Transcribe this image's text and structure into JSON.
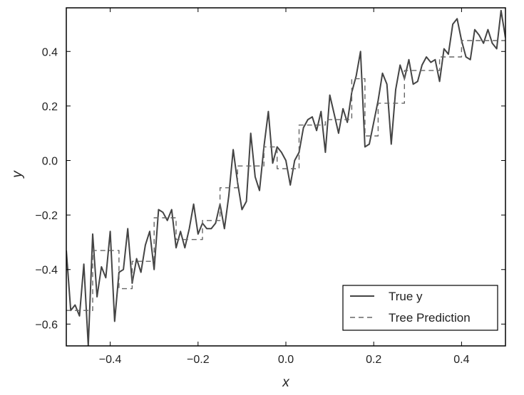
{
  "chart_data": {
    "type": "line",
    "xlabel": "x",
    "ylabel": "y",
    "xlim": [
      -0.5,
      0.5
    ],
    "ylim": [
      -0.68,
      0.56
    ],
    "xticks": [
      -0.4,
      -0.2,
      0.0,
      0.2,
      0.4
    ],
    "xtick_labels": [
      "−0.4",
      "−0.2",
      "0.0",
      "0.2",
      "0.4"
    ],
    "yticks": [
      -0.6,
      -0.4,
      -0.2,
      0.0,
      0.2,
      0.4
    ],
    "ytick_labels": [
      "−0.6",
      "−0.4",
      "−0.2",
      "0.0",
      "0.2",
      "0.4"
    ],
    "grid": false,
    "legend_position": "bottom-right",
    "series": [
      {
        "name": "True y",
        "style": "solid",
        "color": "#444444",
        "x": [
          -0.5,
          -0.49,
          -0.48,
          -0.47,
          -0.46,
          -0.45,
          -0.44,
          -0.43,
          -0.42,
          -0.41,
          -0.4,
          -0.39,
          -0.38,
          -0.37,
          -0.36,
          -0.35,
          -0.34,
          -0.33,
          -0.32,
          -0.31,
          -0.3,
          -0.29,
          -0.28,
          -0.27,
          -0.26,
          -0.25,
          -0.24,
          -0.23,
          -0.22,
          -0.21,
          -0.2,
          -0.19,
          -0.18,
          -0.17,
          -0.16,
          -0.15,
          -0.14,
          -0.13,
          -0.12,
          -0.11,
          -0.1,
          -0.09,
          -0.08,
          -0.07,
          -0.06,
          -0.05,
          -0.04,
          -0.03,
          -0.02,
          -0.01,
          0.0,
          0.01,
          0.02,
          0.03,
          0.04,
          0.05,
          0.06,
          0.07,
          0.08,
          0.09,
          0.1,
          0.11,
          0.12,
          0.13,
          0.14,
          0.15,
          0.16,
          0.17,
          0.18,
          0.19,
          0.2,
          0.21,
          0.22,
          0.23,
          0.24,
          0.25,
          0.26,
          0.27,
          0.28,
          0.29,
          0.3,
          0.31,
          0.32,
          0.33,
          0.34,
          0.35,
          0.36,
          0.37,
          0.38,
          0.39,
          0.4,
          0.41,
          0.42,
          0.43,
          0.44,
          0.45,
          0.46,
          0.47,
          0.48,
          0.49,
          0.5
        ],
        "y": [
          -0.33,
          -0.55,
          -0.53,
          -0.57,
          -0.38,
          -0.68,
          -0.27,
          -0.5,
          -0.39,
          -0.43,
          -0.26,
          -0.59,
          -0.41,
          -0.4,
          -0.25,
          -0.45,
          -0.36,
          -0.41,
          -0.31,
          -0.26,
          -0.4,
          -0.18,
          -0.19,
          -0.22,
          -0.18,
          -0.32,
          -0.26,
          -0.32,
          -0.25,
          -0.16,
          -0.27,
          -0.23,
          -0.25,
          -0.25,
          -0.23,
          -0.16,
          -0.25,
          -0.13,
          0.04,
          -0.08,
          -0.18,
          -0.15,
          0.1,
          -0.06,
          -0.11,
          0.05,
          0.18,
          -0.01,
          0.05,
          0.03,
          0.0,
          -0.09,
          0.0,
          0.03,
          0.12,
          0.15,
          0.16,
          0.11,
          0.18,
          0.03,
          0.24,
          0.17,
          0.1,
          0.19,
          0.14,
          0.25,
          0.31,
          0.4,
          0.05,
          0.06,
          0.14,
          0.22,
          0.32,
          0.28,
          0.06,
          0.26,
          0.35,
          0.3,
          0.37,
          0.28,
          0.29,
          0.35,
          0.38,
          0.36,
          0.37,
          0.29,
          0.41,
          0.39,
          0.5,
          0.52,
          0.44,
          0.38,
          0.37,
          0.48,
          0.46,
          0.43,
          0.48,
          0.43,
          0.41,
          0.55,
          0.45
        ]
      },
      {
        "name": "Tree Prediction",
        "style": "dashed",
        "color": "#666666",
        "x": [
          -0.5,
          -0.44,
          -0.44,
          -0.38,
          -0.38,
          -0.35,
          -0.35,
          -0.3,
          -0.3,
          -0.25,
          -0.25,
          -0.19,
          -0.19,
          -0.15,
          -0.15,
          -0.11,
          -0.11,
          -0.05,
          -0.05,
          -0.02,
          -0.02,
          0.03,
          0.03,
          0.09,
          0.09,
          0.15,
          0.15,
          0.18,
          0.18,
          0.21,
          0.21,
          0.27,
          0.27,
          0.35,
          0.35,
          0.4,
          0.4,
          0.5
        ],
        "y": [
          -0.55,
          -0.55,
          -0.33,
          -0.33,
          -0.47,
          -0.47,
          -0.37,
          -0.37,
          -0.21,
          -0.21,
          -0.29,
          -0.29,
          -0.22,
          -0.22,
          -0.1,
          -0.1,
          -0.02,
          -0.02,
          0.05,
          0.05,
          -0.03,
          -0.03,
          0.13,
          0.13,
          0.15,
          0.15,
          0.3,
          0.3,
          0.09,
          0.09,
          0.21,
          0.21,
          0.33,
          0.33,
          0.38,
          0.38,
          0.44,
          0.44
        ]
      }
    ]
  }
}
